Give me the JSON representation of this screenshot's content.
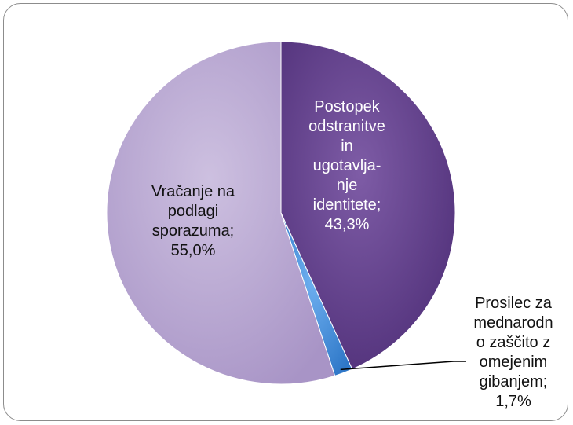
{
  "chart_data": {
    "type": "pie",
    "slices": [
      {
        "label": "Postopek\nodstranitve\nin\nugotavlja-\nnje\nidentitete;\n43,3%",
        "value": 43.3,
        "color": "#6a4a8e"
      },
      {
        "label": "Prosilec za\nmednarodn\no zaščito z\nomejenim\ngibanjem;\n1,7%",
        "value": 1.7,
        "color": "#4a90d9"
      },
      {
        "label": "Vračanje na\npodlagi\nsporazuma;\n55,0%",
        "value": 55.0,
        "color": "#b8a8cf"
      }
    ],
    "title": "",
    "legend": "none"
  }
}
